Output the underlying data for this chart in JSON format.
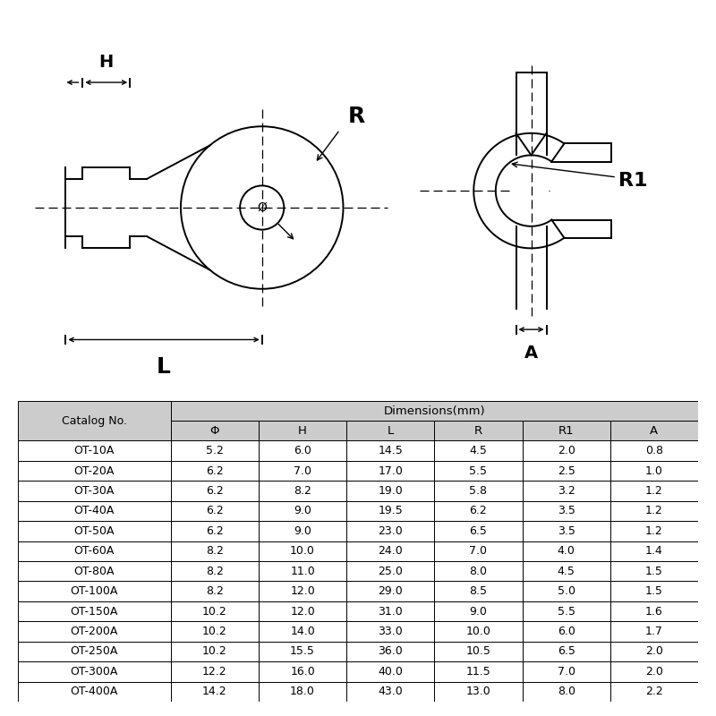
{
  "bg_color": "#ffffff",
  "line_color": "#000000",
  "table_header_bg": "#cccccc",
  "table_row_bg1": "#ffffff",
  "table_row_bg2": "#ffffff",
  "catalog_col": "Catalog No.",
  "dimensions_header": "Dimensions(mm)",
  "col_headers": [
    "Φ",
    "H",
    "L",
    "R",
    "R1",
    "A"
  ],
  "rows": [
    [
      "OT-10A",
      "5.2",
      "6.0",
      "14.5",
      "4.5",
      "2.0",
      "0.8"
    ],
    [
      "OT-20A",
      "6.2",
      "7.0",
      "17.0",
      "5.5",
      "2.5",
      "1.0"
    ],
    [
      "OT-30A",
      "6.2",
      "8.2",
      "19.0",
      "5.8",
      "3.2",
      "1.2"
    ],
    [
      "OT-40A",
      "6.2",
      "9.0",
      "19.5",
      "6.2",
      "3.5",
      "1.2"
    ],
    [
      "OT-50A",
      "6.2",
      "9.0",
      "23.0",
      "6.5",
      "3.5",
      "1.2"
    ],
    [
      "OT-60A",
      "8.2",
      "10.0",
      "24.0",
      "7.0",
      "4.0",
      "1.4"
    ],
    [
      "OT-80A",
      "8.2",
      "11.0",
      "25.0",
      "8.0",
      "4.5",
      "1.5"
    ],
    [
      "OT-100A",
      "8.2",
      "12.0",
      "29.0",
      "8.5",
      "5.0",
      "1.5"
    ],
    [
      "OT-150A",
      "10.2",
      "12.0",
      "31.0",
      "9.0",
      "5.5",
      "1.6"
    ],
    [
      "OT-200A",
      "10.2",
      "14.0",
      "33.0",
      "10.0",
      "6.0",
      "1.7"
    ],
    [
      "OT-250A",
      "10.2",
      "15.5",
      "36.0",
      "10.5",
      "6.5",
      "2.0"
    ],
    [
      "OT-300A",
      "12.2",
      "16.0",
      "40.0",
      "11.5",
      "7.0",
      "2.0"
    ],
    [
      "OT-400A",
      "14.2",
      "18.0",
      "43.0",
      "13.0",
      "8.0",
      "2.2"
    ]
  ]
}
